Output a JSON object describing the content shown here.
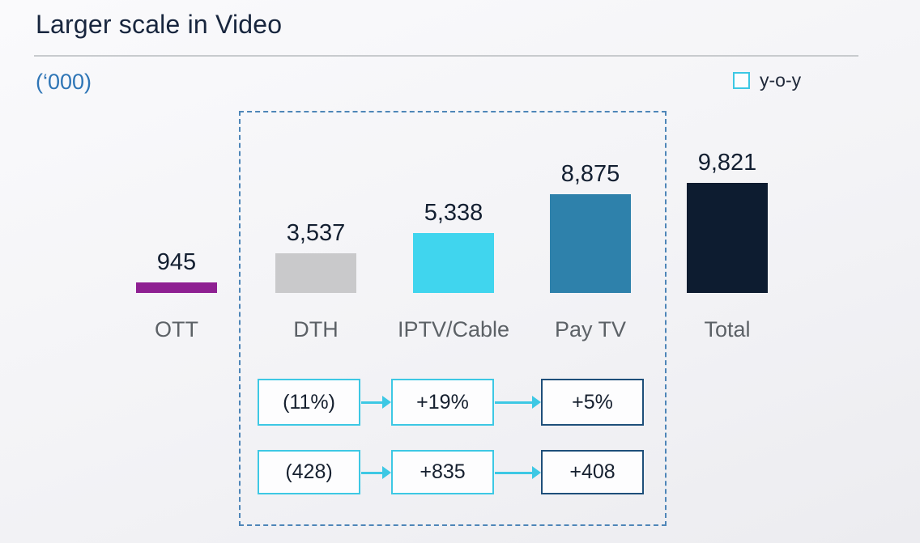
{
  "slide": {
    "title": "Larger scale in Video",
    "units_label": "(‘000)",
    "legend_label": "y-o-y"
  },
  "chart_data": {
    "type": "bar",
    "title": "Larger scale in Video",
    "ylabel": "(‘000)",
    "ylim": [
      0,
      10000
    ],
    "grid": false,
    "legend_position": "top-right",
    "legend": [
      "y-o-y"
    ],
    "categories": [
      "OTT",
      "DTH",
      "IPTV/Cable",
      "Pay TV",
      "Total"
    ],
    "values": [
      945,
      3537,
      5338,
      8875,
      9821
    ],
    "value_labels": [
      "945",
      "3,537",
      "5,338",
      "8,875",
      "9,821"
    ],
    "bar_colors": [
      "#8e2092",
      "#c9c9cb",
      "#40d5ee",
      "#2e81ab",
      "#0d1c30"
    ],
    "yoy": {
      "pct_row": [
        "(11%)",
        "+19%",
        "+5%"
      ],
      "abs_row": [
        "(428)",
        "+835",
        "+408"
      ]
    }
  },
  "colors": {
    "accent_cyan": "#3dc8e4",
    "navy_box_border": "#1e4f7a",
    "dashed_group_border": "#4e86b8",
    "title_text": "#18263e",
    "units_text": "#2e75b6",
    "category_text": "#5c6166"
  }
}
